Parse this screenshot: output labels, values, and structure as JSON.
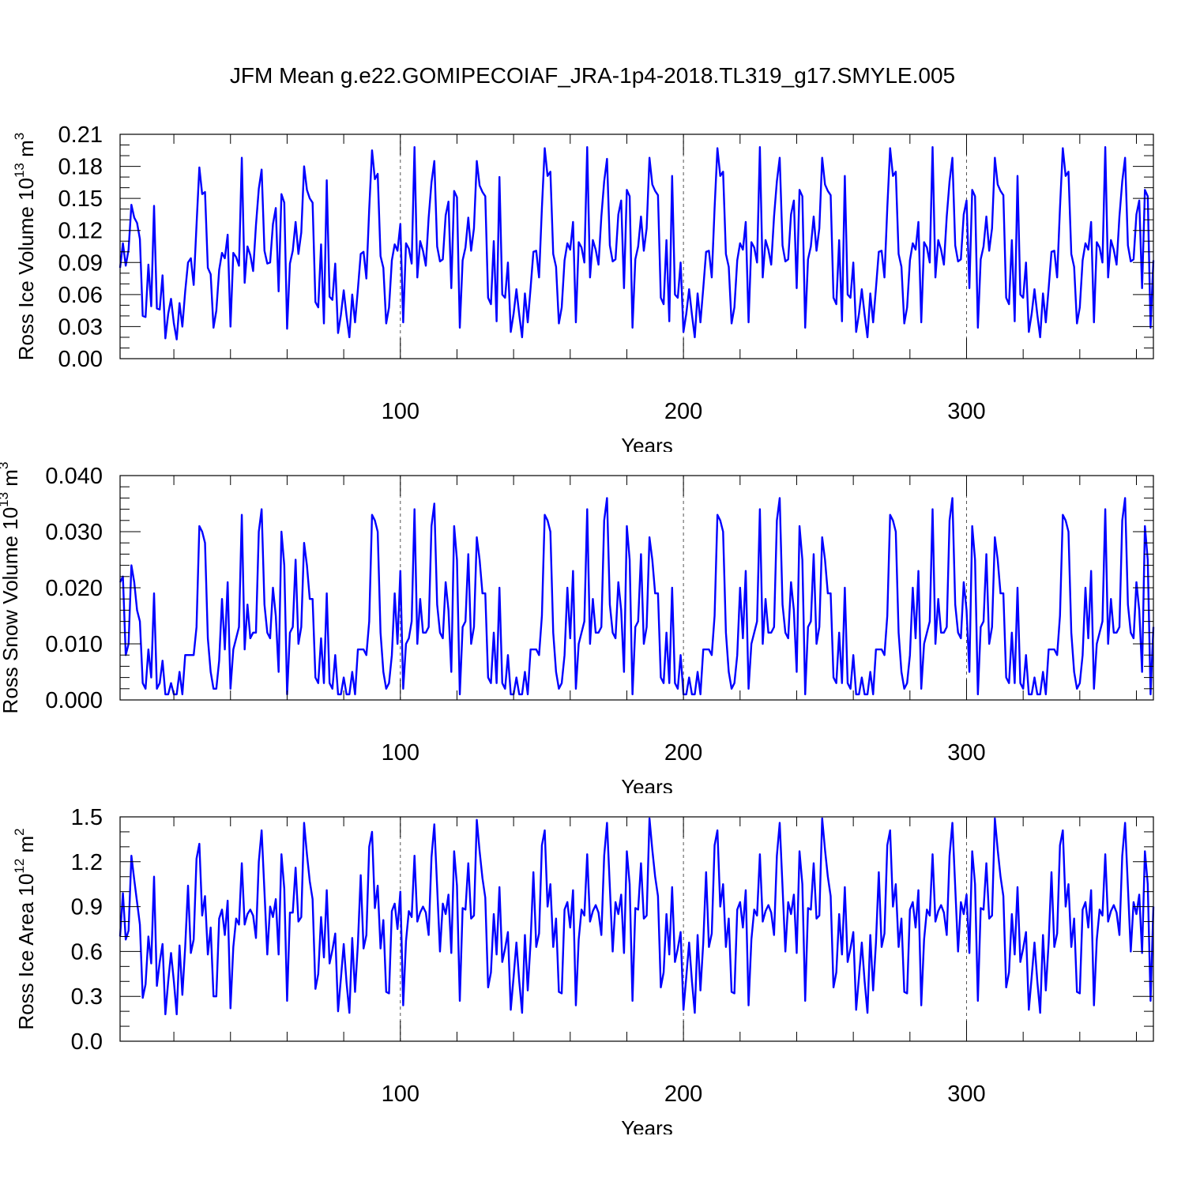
{
  "title": "JFM Mean g.e22.GOMIPECOIAF_JRA-1p4-2018.TL319_g17.SMYLE.005",
  "chart_data": [
    {
      "type": "line",
      "xlabel": "Years",
      "ylabel": "Ross Ice Volume 10",
      "ylabel_exp": "13",
      "ylabel_unit": " m",
      "ylabel_unit_exp": "3",
      "xlim": [
        1,
        366
      ],
      "ylim": [
        0,
        0.21
      ],
      "xticks": [
        100,
        200,
        300
      ],
      "yticks": [
        "0.00",
        "0.03",
        "0.06",
        "0.09",
        "0.12",
        "0.15",
        "0.18",
        "0.21"
      ],
      "reference_lines_x": [
        100,
        200,
        300
      ],
      "color": "#0000ff",
      "x_start": 1,
      "values": [
        0.085,
        0.108,
        0.087,
        0.102,
        0.144,
        0.132,
        0.127,
        0.112,
        0.04,
        0.039,
        0.088,
        0.049,
        0.143,
        0.047,
        0.046,
        0.078,
        0.019,
        0.042,
        0.056,
        0.033,
        0.018,
        0.052,
        0.03,
        0.063,
        0.09,
        0.094,
        0.069,
        0.125,
        0.179,
        0.154,
        0.156,
        0.085,
        0.079,
        0.029,
        0.045,
        0.083,
        0.099,
        0.094,
        0.116,
        0.03,
        0.099,
        0.095,
        0.087,
        0.188,
        0.071,
        0.105,
        0.097,
        0.082,
        0.125,
        0.159,
        0.177,
        0.101,
        0.089,
        0.09,
        0.126,
        0.141,
        0.063,
        0.154,
        0.146,
        0.028,
        0.089,
        0.101,
        0.128,
        0.098,
        0.118,
        0.18,
        0.158,
        0.15,
        0.146,
        0.053,
        0.048,
        0.107,
        0.033,
        0.167,
        0.058,
        0.055,
        0.089,
        0.024,
        0.041,
        0.064,
        0.04,
        0.02,
        0.06,
        0.034,
        0.065,
        0.098,
        0.1,
        0.075,
        0.14,
        0.195,
        0.168,
        0.173,
        0.096,
        0.085,
        0.033,
        0.048,
        0.092,
        0.107,
        0.101,
        0.126,
        0.034,
        0.108,
        0.103,
        0.089,
        0.198,
        0.076,
        0.11,
        0.101,
        0.087,
        0.132,
        0.165,
        0.185,
        0.105,
        0.091,
        0.093,
        0.134,
        0.147,
        0.066,
        0.157,
        0.151,
        0.029,
        0.092,
        0.104,
        0.132,
        0.101,
        0.122,
        0.185,
        0.162,
        0.156,
        0.152,
        0.057,
        0.051,
        0.11,
        0.035,
        0.17,
        0.06,
        0.057,
        0.09,
        0.025,
        0.042,
        0.065,
        0.041,
        0.02,
        0.061,
        0.034,
        0.066,
        0.1,
        0.101,
        0.076,
        0.141,
        0.197,
        0.171,
        0.175,
        0.098,
        0.086,
        0.033,
        0.048,
        0.092,
        0.108,
        0.102,
        0.128,
        0.034,
        0.109,
        0.104,
        0.09,
        0.198,
        0.076,
        0.111,
        0.102,
        0.088,
        0.133,
        0.166,
        0.187,
        0.106,
        0.091,
        0.093,
        0.135,
        0.148,
        0.066,
        0.158,
        0.152,
        0.029,
        0.093,
        0.105,
        0.133,
        0.101,
        0.122,
        0.188,
        0.163,
        0.157,
        0.153,
        0.057,
        0.051,
        0.111,
        0.035,
        0.171,
        0.06,
        0.057,
        0.09,
        0.025,
        0.042,
        0.065,
        0.041,
        0.02,
        0.061,
        0.034,
        0.066,
        0.1,
        0.101,
        0.076,
        0.141,
        0.197,
        0.171,
        0.175,
        0.098,
        0.086,
        0.033,
        0.048,
        0.092,
        0.108,
        0.102,
        0.128,
        0.034,
        0.109,
        0.104,
        0.09,
        0.198,
        0.076,
        0.111,
        0.102,
        0.088,
        0.133,
        0.166,
        0.188,
        0.106,
        0.091,
        0.093,
        0.135,
        0.148,
        0.066,
        0.158,
        0.152,
        0.029,
        0.093,
        0.105,
        0.133,
        0.101,
        0.122,
        0.188,
        0.163,
        0.157,
        0.153,
        0.057,
        0.051,
        0.111,
        0.035,
        0.171,
        0.06,
        0.057,
        0.09,
        0.025,
        0.042,
        0.065,
        0.041,
        0.02,
        0.061,
        0.034,
        0.066,
        0.1,
        0.101,
        0.076,
        0.141,
        0.197,
        0.171,
        0.175,
        0.098,
        0.086,
        0.033,
        0.048,
        0.092,
        0.108,
        0.102,
        0.128,
        0.034,
        0.109,
        0.104,
        0.09,
        0.198,
        0.076,
        0.111,
        0.102,
        0.088,
        0.133,
        0.166,
        0.188,
        0.106,
        0.091,
        0.093,
        0.135,
        0.148,
        0.066,
        0.158,
        0.152,
        0.029,
        0.093,
        0.105,
        0.133,
        0.101,
        0.122,
        0.188,
        0.163,
        0.157,
        0.153,
        0.057,
        0.051,
        0.111,
        0.035,
        0.171,
        0.06,
        0.057,
        0.09,
        0.025,
        0.042,
        0.065,
        0.041,
        0.02,
        0.061,
        0.034,
        0.066,
        0.1,
        0.101,
        0.076,
        0.141,
        0.197,
        0.171,
        0.175,
        0.098,
        0.086,
        0.033,
        0.048,
        0.092,
        0.108,
        0.102,
        0.128,
        0.034,
        0.109,
        0.104,
        0.09,
        0.198,
        0.076,
        0.111,
        0.102,
        0.088,
        0.133,
        0.166,
        0.188,
        0.106,
        0.091,
        0.093,
        0.135,
        0.148,
        0.066,
        0.158,
        0.152,
        0.029,
        0.092
      ]
    },
    {
      "type": "line",
      "xlabel": "Years",
      "ylabel": "Ross Snow Volume 10",
      "ylabel_exp": "13",
      "ylabel_unit": " m",
      "ylabel_unit_exp": "3",
      "xlim": [
        1,
        366
      ],
      "ylim": [
        0,
        0.04
      ],
      "xticks": [
        100,
        200,
        300
      ],
      "yticks": [
        "0.000",
        "0.010",
        "0.020",
        "0.030",
        "0.040"
      ],
      "reference_lines_x": [
        100,
        200,
        300
      ],
      "color": "#0000ff",
      "x_start": 1,
      "values": [
        0.021,
        0.022,
        0.008,
        0.01,
        0.024,
        0.021,
        0.016,
        0.014,
        0.003,
        0.002,
        0.009,
        0.004,
        0.019,
        0.002,
        0.003,
        0.007,
        0.001,
        0.001,
        0.003,
        0.001,
        0.001,
        0.005,
        0.001,
        0.008,
        0.008,
        0.008,
        0.008,
        0.013,
        0.031,
        0.03,
        0.028,
        0.011,
        0.005,
        0.002,
        0.002,
        0.007,
        0.018,
        0.009,
        0.021,
        0.002,
        0.009,
        0.011,
        0.013,
        0.033,
        0.009,
        0.017,
        0.011,
        0.012,
        0.012,
        0.03,
        0.034,
        0.017,
        0.012,
        0.011,
        0.02,
        0.015,
        0.005,
        0.03,
        0.024,
        0.001,
        0.012,
        0.013,
        0.025,
        0.01,
        0.013,
        0.028,
        0.024,
        0.018,
        0.018,
        0.004,
        0.003,
        0.011,
        0.003,
        0.019,
        0.003,
        0.002,
        0.008,
        0.001,
        0.001,
        0.004,
        0.001,
        0.001,
        0.005,
        0.001,
        0.009,
        0.009,
        0.009,
        0.008,
        0.014,
        0.033,
        0.032,
        0.03,
        0.012,
        0.005,
        0.002,
        0.003,
        0.008,
        0.019,
        0.01,
        0.023,
        0.002,
        0.01,
        0.011,
        0.014,
        0.034,
        0.01,
        0.018,
        0.012,
        0.012,
        0.013,
        0.031,
        0.035,
        0.017,
        0.012,
        0.011,
        0.021,
        0.016,
        0.005,
        0.031,
        0.025,
        0.001,
        0.013,
        0.014,
        0.026,
        0.01,
        0.013,
        0.029,
        0.025,
        0.019,
        0.019,
        0.004,
        0.003,
        0.012,
        0.003,
        0.02,
        0.003,
        0.002,
        0.008,
        0.001,
        0.001,
        0.004,
        0.001,
        0.001,
        0.005,
        0.001,
        0.009,
        0.009,
        0.009,
        0.008,
        0.015,
        0.033,
        0.032,
        0.03,
        0.012,
        0.005,
        0.002,
        0.003,
        0.008,
        0.02,
        0.011,
        0.023,
        0.002,
        0.01,
        0.012,
        0.014,
        0.034,
        0.01,
        0.018,
        0.012,
        0.012,
        0.013,
        0.032,
        0.036,
        0.017,
        0.012,
        0.011,
        0.021,
        0.016,
        0.005,
        0.031,
        0.025,
        0.001,
        0.013,
        0.014,
        0.026,
        0.01,
        0.013,
        0.029,
        0.025,
        0.019,
        0.019,
        0.004,
        0.003,
        0.012,
        0.003,
        0.02,
        0.003,
        0.002,
        0.008,
        0.001,
        0.001,
        0.004,
        0.001,
        0.001,
        0.005,
        0.001,
        0.009,
        0.009,
        0.009,
        0.008,
        0.015,
        0.033,
        0.032,
        0.03,
        0.012,
        0.005,
        0.002,
        0.003,
        0.008,
        0.02,
        0.011,
        0.023,
        0.002,
        0.01,
        0.012,
        0.014,
        0.034,
        0.01,
        0.018,
        0.012,
        0.012,
        0.013,
        0.032,
        0.036,
        0.017,
        0.012,
        0.011,
        0.021,
        0.016,
        0.005,
        0.031,
        0.025,
        0.001,
        0.013,
        0.014,
        0.026,
        0.01,
        0.013,
        0.029,
        0.025,
        0.019,
        0.019,
        0.004,
        0.003,
        0.012,
        0.003,
        0.02,
        0.003,
        0.002,
        0.008,
        0.001,
        0.001,
        0.004,
        0.001,
        0.001,
        0.005,
        0.001,
        0.009,
        0.009,
        0.009,
        0.008,
        0.015,
        0.033,
        0.032,
        0.03,
        0.012,
        0.005,
        0.002,
        0.003,
        0.008,
        0.02,
        0.011,
        0.023,
        0.002,
        0.01,
        0.012,
        0.014,
        0.034,
        0.01,
        0.018,
        0.012,
        0.012,
        0.013,
        0.032,
        0.036,
        0.017,
        0.012,
        0.011,
        0.021,
        0.016,
        0.005,
        0.031,
        0.025,
        0.001,
        0.013,
        0.014,
        0.026,
        0.01,
        0.013,
        0.029,
        0.025,
        0.019,
        0.019,
        0.004,
        0.003,
        0.012,
        0.003,
        0.02,
        0.003,
        0.002,
        0.008,
        0.001,
        0.001,
        0.004,
        0.001,
        0.001,
        0.005,
        0.001,
        0.009,
        0.009,
        0.009,
        0.008,
        0.015,
        0.033,
        0.032,
        0.03,
        0.012,
        0.005,
        0.002,
        0.003,
        0.008,
        0.02,
        0.011,
        0.023,
        0.002,
        0.01,
        0.012,
        0.014,
        0.034,
        0.01,
        0.018,
        0.012,
        0.012,
        0.013,
        0.032,
        0.036,
        0.017,
        0.012,
        0.011,
        0.021,
        0.016,
        0.005,
        0.031,
        0.025,
        0.001,
        0.013
      ]
    },
    {
      "type": "line",
      "xlabel": "Years",
      "ylabel": "Ross Ice Area 10",
      "ylabel_exp": "12",
      "ylabel_unit": " m",
      "ylabel_unit_exp": "2",
      "xlim": [
        1,
        366
      ],
      "ylim": [
        0,
        1.5
      ],
      "xticks": [
        100,
        200,
        300
      ],
      "yticks": [
        "0.0",
        "0.3",
        "0.6",
        "0.9",
        "1.2",
        "1.5"
      ],
      "reference_lines_x": [
        100,
        200,
        300
      ],
      "color": "#0000ff",
      "x_start": 1,
      "values": [
        0.7,
        0.99,
        0.68,
        0.74,
        1.24,
        1.08,
        0.93,
        0.78,
        0.29,
        0.38,
        0.7,
        0.52,
        1.1,
        0.37,
        0.53,
        0.65,
        0.18,
        0.4,
        0.59,
        0.4,
        0.18,
        0.64,
        0.31,
        0.63,
        1.04,
        0.59,
        0.68,
        1.22,
        1.32,
        0.84,
        0.97,
        0.58,
        0.76,
        0.3,
        0.3,
        0.82,
        0.88,
        0.71,
        0.94,
        0.22,
        0.63,
        0.82,
        0.78,
        1.19,
        0.78,
        0.85,
        0.88,
        0.84,
        0.69,
        1.2,
        1.41,
        1.0,
        0.58,
        0.9,
        0.83,
        0.95,
        0.58,
        1.25,
        1.02,
        0.27,
        0.86,
        0.86,
        1.16,
        0.8,
        0.83,
        1.46,
        1.25,
        1.07,
        0.95,
        0.35,
        0.45,
        0.83,
        0.56,
        1.01,
        0.52,
        0.61,
        0.72,
        0.2,
        0.42,
        0.65,
        0.39,
        0.19,
        0.69,
        0.33,
        0.65,
        1.11,
        0.62,
        0.71,
        1.3,
        1.4,
        0.89,
        1.04,
        0.62,
        0.81,
        0.33,
        0.32,
        0.87,
        0.92,
        0.75,
        1.0,
        0.24,
        0.67,
        0.87,
        0.83,
        1.24,
        0.8,
        0.86,
        0.9,
        0.86,
        0.71,
        1.23,
        1.45,
        1.03,
        0.6,
        0.92,
        0.85,
        0.98,
        0.59,
        1.27,
        1.04,
        0.27,
        0.89,
        0.88,
        1.19,
        0.82,
        0.84,
        1.48,
        1.27,
        1.09,
        0.96,
        0.36,
        0.46,
        0.85,
        0.58,
        1.03,
        0.53,
        0.62,
        0.73,
        0.21,
        0.43,
        0.66,
        0.4,
        0.19,
        0.71,
        0.34,
        0.66,
        1.13,
        0.63,
        0.72,
        1.31,
        1.41,
        0.9,
        1.05,
        0.63,
        0.82,
        0.33,
        0.32,
        0.88,
        0.93,
        0.76,
        1.01,
        0.24,
        0.68,
        0.88,
        0.84,
        1.25,
        0.8,
        0.87,
        0.91,
        0.86,
        0.71,
        1.24,
        1.46,
        1.03,
        0.6,
        0.93,
        0.85,
        0.98,
        0.59,
        1.27,
        1.05,
        0.27,
        0.89,
        0.88,
        1.19,
        0.82,
        0.84,
        1.49,
        1.28,
        1.1,
        0.97,
        0.36,
        0.46,
        0.85,
        0.58,
        1.03,
        0.53,
        0.62,
        0.73,
        0.21,
        0.43,
        0.66,
        0.4,
        0.19,
        0.71,
        0.34,
        0.66,
        1.13,
        0.63,
        0.72,
        1.31,
        1.41,
        0.9,
        1.05,
        0.63,
        0.82,
        0.33,
        0.32,
        0.88,
        0.93,
        0.76,
        1.01,
        0.24,
        0.68,
        0.88,
        0.84,
        1.25,
        0.8,
        0.87,
        0.91,
        0.86,
        0.71,
        1.24,
        1.46,
        1.03,
        0.6,
        0.93,
        0.85,
        0.98,
        0.59,
        1.27,
        1.05,
        0.27,
        0.89,
        0.88,
        1.19,
        0.82,
        0.84,
        1.49,
        1.28,
        1.1,
        0.97,
        0.36,
        0.46,
        0.85,
        0.58,
        1.03,
        0.53,
        0.62,
        0.73,
        0.21,
        0.43,
        0.66,
        0.4,
        0.19,
        0.71,
        0.34,
        0.66,
        1.13,
        0.63,
        0.72,
        1.31,
        1.41,
        0.9,
        1.05,
        0.63,
        0.82,
        0.33,
        0.32,
        0.88,
        0.93,
        0.76,
        1.01,
        0.24,
        0.68,
        0.88,
        0.84,
        1.25,
        0.8,
        0.87,
        0.91,
        0.86,
        0.71,
        1.24,
        1.46,
        1.03,
        0.6,
        0.93,
        0.85,
        0.98,
        0.59,
        1.27,
        1.05,
        0.27,
        0.89,
        0.88,
        1.19,
        0.82,
        0.84,
        1.49,
        1.28,
        1.1,
        0.97,
        0.36,
        0.46,
        0.85,
        0.58,
        1.03,
        0.53,
        0.62,
        0.73,
        0.21,
        0.43,
        0.66,
        0.4,
        0.19,
        0.71,
        0.34,
        0.66,
        1.13,
        0.63,
        0.72,
        1.31,
        1.41,
        0.9,
        1.05,
        0.63,
        0.82,
        0.33,
        0.32,
        0.88,
        0.93,
        0.76,
        1.01,
        0.24,
        0.68,
        0.88,
        0.84,
        1.25,
        0.8,
        0.87,
        0.91,
        0.86,
        0.71,
        1.24,
        1.46,
        1.03,
        0.6,
        0.93,
        0.85,
        0.98,
        0.59,
        1.27,
        1.05,
        0.27,
        0.9
      ]
    }
  ]
}
